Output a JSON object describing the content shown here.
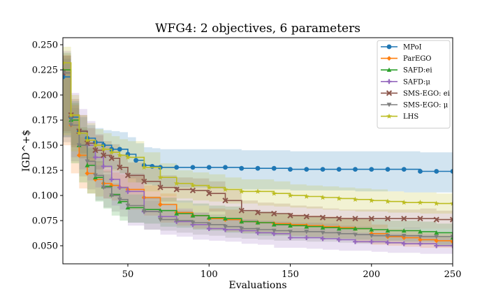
{
  "chart_data": {
    "type": "line",
    "title": "WFG4: 2 objectives, 6 parameters",
    "xlabel": "Evaluations",
    "ylabel": "IGD^+$",
    "xlim": [
      10,
      250
    ],
    "ylim": [
      0.032,
      0.257
    ],
    "xticks": [
      50,
      100,
      150,
      200,
      250
    ],
    "yticks": [
      0.05,
      0.075,
      0.1,
      0.125,
      0.15,
      0.175,
      0.2,
      0.225,
      0.25
    ],
    "xtick_labels": [
      "50",
      "100",
      "150",
      "200",
      "250"
    ],
    "ytick_labels": [
      "0.050",
      "0.075",
      "0.100",
      "0.125",
      "0.150",
      "0.175",
      "0.200",
      "0.225",
      "0.250"
    ],
    "grid": false,
    "legend_position": "top-right",
    "series": [
      {
        "name": "MPoI",
        "color": "#1f77b4",
        "marker": "circle",
        "x": [
          10,
          15,
          20,
          25,
          30,
          35,
          40,
          45,
          50,
          55,
          60,
          65,
          70,
          80,
          90,
          100,
          110,
          120,
          130,
          140,
          150,
          160,
          170,
          180,
          190,
          200,
          210,
          220,
          230,
          240,
          250
        ],
        "y": [
          0.218,
          0.178,
          0.164,
          0.157,
          0.153,
          0.15,
          0.146,
          0.146,
          0.141,
          0.135,
          0.13,
          0.129,
          0.128,
          0.128,
          0.128,
          0.128,
          0.128,
          0.127,
          0.127,
          0.127,
          0.126,
          0.126,
          0.126,
          0.126,
          0.126,
          0.126,
          0.126,
          0.126,
          0.124,
          0.124,
          0.124
        ],
        "band_lower": [
          0.2,
          0.162,
          0.15,
          0.142,
          0.137,
          0.133,
          0.128,
          0.126,
          0.122,
          0.117,
          0.113,
          0.111,
          0.11,
          0.109,
          0.108,
          0.108,
          0.107,
          0.107,
          0.106,
          0.106,
          0.106,
          0.105,
          0.105,
          0.105,
          0.105,
          0.104,
          0.104,
          0.104,
          0.103,
          0.103,
          0.103
        ],
        "band_upper": [
          0.236,
          0.194,
          0.178,
          0.17,
          0.167,
          0.165,
          0.164,
          0.163,
          0.158,
          0.152,
          0.148,
          0.147,
          0.146,
          0.146,
          0.146,
          0.146,
          0.146,
          0.145,
          0.145,
          0.145,
          0.144,
          0.144,
          0.144,
          0.144,
          0.144,
          0.144,
          0.144,
          0.144,
          0.143,
          0.143,
          0.143
        ]
      },
      {
        "name": "ParEGO",
        "color": "#ff7f0e",
        "marker": "diamond",
        "x": [
          10,
          15,
          20,
          25,
          30,
          35,
          40,
          45,
          50,
          60,
          70,
          80,
          90,
          100,
          110,
          120,
          130,
          140,
          150,
          160,
          170,
          180,
          190,
          200,
          210,
          220,
          230,
          240,
          250
        ],
        "y": [
          0.225,
          0.17,
          0.14,
          0.122,
          0.116,
          0.112,
          0.11,
          0.108,
          0.106,
          0.098,
          0.091,
          0.083,
          0.08,
          0.077,
          0.076,
          0.074,
          0.073,
          0.072,
          0.071,
          0.07,
          0.069,
          0.068,
          0.067,
          0.062,
          0.059,
          0.058,
          0.056,
          0.055,
          0.054
        ],
        "band_lower": [
          0.21,
          0.15,
          0.122,
          0.107,
          0.102,
          0.099,
          0.097,
          0.095,
          0.093,
          0.086,
          0.08,
          0.073,
          0.07,
          0.067,
          0.066,
          0.064,
          0.063,
          0.062,
          0.061,
          0.06,
          0.059,
          0.058,
          0.057,
          0.053,
          0.051,
          0.05,
          0.049,
          0.048,
          0.048
        ],
        "band_upper": [
          0.24,
          0.19,
          0.158,
          0.138,
          0.13,
          0.126,
          0.123,
          0.121,
          0.119,
          0.11,
          0.102,
          0.093,
          0.09,
          0.087,
          0.086,
          0.084,
          0.083,
          0.082,
          0.081,
          0.08,
          0.079,
          0.078,
          0.077,
          0.071,
          0.067,
          0.066,
          0.063,
          0.062,
          0.06
        ]
      },
      {
        "name": "SAFD:ei",
        "color": "#2ca02c",
        "marker": "triangle-up",
        "x": [
          10,
          15,
          20,
          25,
          30,
          35,
          40,
          45,
          50,
          60,
          70,
          80,
          90,
          100,
          110,
          120,
          130,
          140,
          150,
          160,
          170,
          180,
          190,
          200,
          210,
          220,
          230,
          240,
          250
        ],
        "y": [
          0.225,
          0.175,
          0.15,
          0.13,
          0.118,
          0.109,
          0.101,
          0.094,
          0.088,
          0.086,
          0.085,
          0.082,
          0.08,
          0.078,
          0.077,
          0.074,
          0.073,
          0.071,
          0.07,
          0.069,
          0.068,
          0.067,
          0.067,
          0.066,
          0.065,
          0.065,
          0.064,
          0.063,
          0.058
        ],
        "band_lower": [
          0.208,
          0.158,
          0.132,
          0.113,
          0.102,
          0.094,
          0.087,
          0.08,
          0.075,
          0.073,
          0.072,
          0.069,
          0.068,
          0.066,
          0.065,
          0.063,
          0.062,
          0.06,
          0.06,
          0.059,
          0.058,
          0.057,
          0.057,
          0.056,
          0.055,
          0.055,
          0.054,
          0.054,
          0.05
        ],
        "band_upper": [
          0.242,
          0.192,
          0.168,
          0.147,
          0.134,
          0.124,
          0.115,
          0.108,
          0.101,
          0.099,
          0.098,
          0.095,
          0.092,
          0.09,
          0.089,
          0.085,
          0.084,
          0.082,
          0.08,
          0.079,
          0.078,
          0.077,
          0.077,
          0.076,
          0.075,
          0.075,
          0.074,
          0.072,
          0.066
        ]
      },
      {
        "name": "SAFD:μ",
        "color": "#9467bd",
        "marker": "plus",
        "x": [
          10,
          15,
          20,
          25,
          30,
          35,
          40,
          45,
          50,
          60,
          70,
          80,
          90,
          100,
          110,
          120,
          130,
          140,
          150,
          160,
          170,
          180,
          190,
          200,
          210,
          220,
          230,
          240,
          250
        ],
        "y": [
          0.222,
          0.18,
          0.162,
          0.15,
          0.138,
          0.129,
          0.116,
          0.108,
          0.104,
          0.084,
          0.079,
          0.074,
          0.071,
          0.067,
          0.066,
          0.065,
          0.063,
          0.062,
          0.058,
          0.058,
          0.057,
          0.056,
          0.054,
          0.054,
          0.053,
          0.052,
          0.052,
          0.05,
          0.05
        ],
        "band_lower": [
          0.2,
          0.158,
          0.138,
          0.126,
          0.115,
          0.108,
          0.097,
          0.09,
          0.086,
          0.07,
          0.066,
          0.061,
          0.059,
          0.056,
          0.055,
          0.054,
          0.052,
          0.051,
          0.048,
          0.048,
          0.047,
          0.046,
          0.045,
          0.045,
          0.044,
          0.043,
          0.043,
          0.042,
          0.042
        ],
        "band_upper": [
          0.244,
          0.202,
          0.186,
          0.174,
          0.161,
          0.15,
          0.135,
          0.126,
          0.122,
          0.098,
          0.092,
          0.087,
          0.083,
          0.078,
          0.077,
          0.076,
          0.074,
          0.073,
          0.068,
          0.068,
          0.067,
          0.066,
          0.063,
          0.063,
          0.062,
          0.061,
          0.061,
          0.058,
          0.058
        ]
      },
      {
        "name": "SMS-EGO: ei",
        "color": "#8c564b",
        "marker": "x",
        "x": [
          10,
          15,
          20,
          25,
          30,
          35,
          40,
          45,
          50,
          60,
          70,
          80,
          90,
          100,
          110,
          120,
          130,
          140,
          150,
          160,
          170,
          180,
          190,
          200,
          210,
          220,
          230,
          240,
          250
        ],
        "y": [
          0.222,
          0.18,
          0.164,
          0.152,
          0.145,
          0.14,
          0.137,
          0.128,
          0.12,
          0.114,
          0.108,
          0.106,
          0.105,
          0.102,
          0.095,
          0.085,
          0.083,
          0.082,
          0.08,
          0.079,
          0.078,
          0.077,
          0.077,
          0.077,
          0.077,
          0.077,
          0.077,
          0.076,
          0.076
        ],
        "band_lower": [
          0.205,
          0.164,
          0.148,
          0.137,
          0.13,
          0.126,
          0.123,
          0.115,
          0.107,
          0.101,
          0.096,
          0.094,
          0.093,
          0.09,
          0.084,
          0.075,
          0.073,
          0.072,
          0.07,
          0.069,
          0.069,
          0.068,
          0.068,
          0.068,
          0.068,
          0.068,
          0.067,
          0.067,
          0.067
        ],
        "band_upper": [
          0.239,
          0.196,
          0.18,
          0.167,
          0.16,
          0.154,
          0.151,
          0.141,
          0.133,
          0.127,
          0.12,
          0.118,
          0.117,
          0.114,
          0.106,
          0.095,
          0.093,
          0.092,
          0.09,
          0.089,
          0.087,
          0.086,
          0.086,
          0.086,
          0.086,
          0.086,
          0.087,
          0.085,
          0.085
        ]
      },
      {
        "name": "SMS-EGO: μ",
        "color": "#7f7f7f",
        "marker": "triangle-down",
        "x": [
          10,
          15,
          20,
          25,
          30,
          35,
          40,
          45,
          50,
          60,
          70,
          80,
          90,
          100,
          110,
          120,
          130,
          140,
          150,
          160,
          170,
          180,
          190,
          200,
          210,
          220,
          230,
          240,
          250
        ],
        "y": [
          0.222,
          0.17,
          0.15,
          0.134,
          0.12,
          0.108,
          0.1,
          0.096,
          0.09,
          0.084,
          0.076,
          0.075,
          0.073,
          0.071,
          0.069,
          0.067,
          0.066,
          0.065,
          0.064,
          0.064,
          0.063,
          0.062,
          0.061,
          0.06,
          0.06,
          0.06,
          0.059,
          0.059,
          0.059
        ],
        "band_lower": [
          0.205,
          0.153,
          0.134,
          0.119,
          0.106,
          0.095,
          0.088,
          0.084,
          0.079,
          0.073,
          0.066,
          0.065,
          0.063,
          0.061,
          0.06,
          0.058,
          0.057,
          0.056,
          0.055,
          0.055,
          0.054,
          0.054,
          0.053,
          0.052,
          0.052,
          0.052,
          0.051,
          0.051,
          0.051
        ],
        "band_upper": [
          0.239,
          0.187,
          0.166,
          0.149,
          0.134,
          0.121,
          0.112,
          0.108,
          0.101,
          0.095,
          0.086,
          0.085,
          0.083,
          0.081,
          0.078,
          0.076,
          0.075,
          0.074,
          0.073,
          0.073,
          0.072,
          0.07,
          0.069,
          0.068,
          0.068,
          0.068,
          0.067,
          0.067,
          0.067
        ]
      },
      {
        "name": "LHS",
        "color": "#bcbd22",
        "marker": "star",
        "x": [
          10,
          15,
          20,
          25,
          30,
          35,
          40,
          45,
          50,
          60,
          70,
          80,
          90,
          100,
          110,
          120,
          130,
          140,
          150,
          160,
          170,
          180,
          190,
          200,
          210,
          220,
          230,
          240,
          250
        ],
        "y": [
          0.232,
          0.18,
          0.162,
          0.155,
          0.15,
          0.146,
          0.143,
          0.14,
          0.138,
          0.128,
          0.118,
          0.112,
          0.11,
          0.108,
          0.106,
          0.104,
          0.104,
          0.102,
          0.1,
          0.099,
          0.098,
          0.097,
          0.096,
          0.095,
          0.094,
          0.093,
          0.093,
          0.092,
          0.092
        ],
        "band_lower": [
          0.216,
          0.16,
          0.144,
          0.138,
          0.134,
          0.13,
          0.127,
          0.124,
          0.122,
          0.113,
          0.104,
          0.099,
          0.097,
          0.095,
          0.094,
          0.092,
          0.092,
          0.09,
          0.089,
          0.088,
          0.087,
          0.086,
          0.085,
          0.084,
          0.084,
          0.083,
          0.083,
          0.082,
          0.082
        ],
        "band_upper": [
          0.248,
          0.2,
          0.18,
          0.172,
          0.166,
          0.162,
          0.159,
          0.156,
          0.154,
          0.143,
          0.132,
          0.125,
          0.123,
          0.121,
          0.118,
          0.116,
          0.116,
          0.114,
          0.111,
          0.11,
          0.109,
          0.108,
          0.107,
          0.106,
          0.104,
          0.103,
          0.103,
          0.102,
          0.102
        ]
      }
    ]
  }
}
